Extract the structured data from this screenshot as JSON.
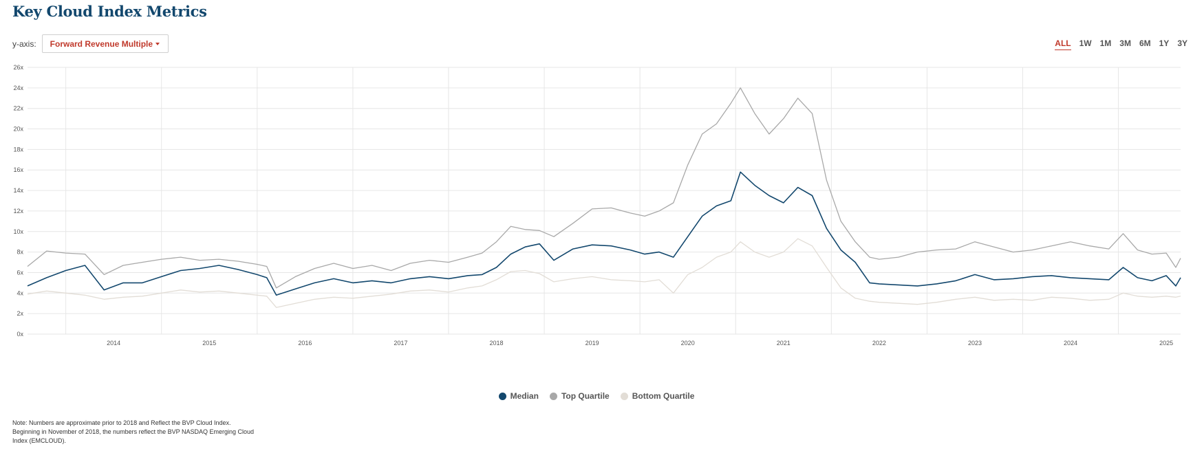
{
  "header": {
    "title": "Key Cloud Index Metrics"
  },
  "yaxis_selector": {
    "label": "y-axis:",
    "value": "Forward Revenue Multiple"
  },
  "ranges": [
    {
      "label": "ALL",
      "active": true
    },
    {
      "label": "1W",
      "active": false
    },
    {
      "label": "1M",
      "active": false
    },
    {
      "label": "3M",
      "active": false
    },
    {
      "label": "6M",
      "active": false
    },
    {
      "label": "1Y",
      "active": false
    },
    {
      "label": "3Y",
      "active": false
    }
  ],
  "note": {
    "line1": "Note: Numbers are approximate prior to 2018 and Reflect the BVP Cloud Index.",
    "line2": "Beginning in November of 2018, the numbers reflect the BVP NASDAQ Emerging Cloud",
    "line3": "Index (EMCLOUD)."
  },
  "colors": {
    "median": "#12476d",
    "top": "#a8a8a8",
    "bottom": "#e2ddd6",
    "accent": "#c0392b"
  },
  "chart_data": {
    "type": "line",
    "x_label_ticks": [
      "2014",
      "2015",
      "2016",
      "2017",
      "2018",
      "2019",
      "2020",
      "2021",
      "2022",
      "2023",
      "2024",
      "2025"
    ],
    "y_tick_labels": [
      "0x",
      "2x",
      "4x",
      "6x",
      "8x",
      "10x",
      "12x",
      "14x",
      "16x",
      "18x",
      "20x",
      "22x",
      "24x",
      "26x"
    ],
    "xlim": [
      2013.1,
      2025.15
    ],
    "ylim": [
      0,
      26
    ],
    "grid": true,
    "legend": "bottom-center",
    "x": [
      2013.1,
      2013.3,
      2013.5,
      2013.7,
      2013.9,
      2014.1,
      2014.3,
      2014.5,
      2014.7,
      2014.9,
      2015.1,
      2015.3,
      2015.5,
      2015.6,
      2015.7,
      2015.9,
      2016.1,
      2016.3,
      2016.5,
      2016.7,
      2016.9,
      2017.1,
      2017.3,
      2017.5,
      2017.7,
      2017.85,
      2018.0,
      2018.15,
      2018.3,
      2018.45,
      2018.6,
      2018.8,
      2019.0,
      2019.2,
      2019.4,
      2019.55,
      2019.7,
      2019.85,
      2020.0,
      2020.15,
      2020.3,
      2020.45,
      2020.55,
      2020.7,
      2020.85,
      2021.0,
      2021.15,
      2021.3,
      2021.45,
      2021.6,
      2021.75,
      2021.9,
      2022.0,
      2022.2,
      2022.4,
      2022.6,
      2022.8,
      2023.0,
      2023.2,
      2023.4,
      2023.6,
      2023.8,
      2024.0,
      2024.2,
      2024.4,
      2024.55,
      2024.7,
      2024.85,
      2025.0,
      2025.1,
      2025.15
    ],
    "series": [
      {
        "name": "Median",
        "values": [
          4.7,
          5.5,
          6.2,
          6.7,
          4.3,
          5.0,
          5.0,
          5.6,
          6.2,
          6.4,
          6.7,
          6.3,
          5.8,
          5.5,
          3.8,
          4.4,
          5.0,
          5.4,
          5.0,
          5.2,
          5.0,
          5.4,
          5.6,
          5.4,
          5.7,
          5.8,
          6.5,
          7.8,
          8.5,
          8.8,
          7.2,
          8.3,
          8.7,
          8.6,
          8.2,
          7.8,
          8.0,
          7.5,
          9.5,
          11.5,
          12.5,
          13.0,
          15.8,
          14.5,
          13.5,
          12.8,
          14.3,
          13.5,
          10.3,
          8.2,
          7.0,
          5.0,
          4.9,
          4.8,
          4.7,
          4.9,
          5.2,
          5.8,
          5.3,
          5.4,
          5.6,
          5.7,
          5.5,
          5.4,
          5.3,
          6.5,
          5.5,
          5.2,
          5.7,
          4.7,
          5.5
        ]
      },
      {
        "name": "Top Quartile",
        "values": [
          6.6,
          8.1,
          7.9,
          7.8,
          5.8,
          6.7,
          7.0,
          7.3,
          7.5,
          7.2,
          7.3,
          7.1,
          6.8,
          6.6,
          4.5,
          5.6,
          6.4,
          6.9,
          6.4,
          6.7,
          6.2,
          6.9,
          7.2,
          7.0,
          7.5,
          7.9,
          9.0,
          10.5,
          10.2,
          10.1,
          9.5,
          10.8,
          12.2,
          12.3,
          11.8,
          11.5,
          12.0,
          12.8,
          16.5,
          19.5,
          20.5,
          22.5,
          24.0,
          21.5,
          19.5,
          21.0,
          23.0,
          21.5,
          15.0,
          11.0,
          9.0,
          7.5,
          7.3,
          7.5,
          8.0,
          8.2,
          8.3,
          9.0,
          8.5,
          8.0,
          8.2,
          8.6,
          9.0,
          8.6,
          8.3,
          9.8,
          8.2,
          7.8,
          7.9,
          6.5,
          7.4
        ]
      },
      {
        "name": "Bottom Quartile",
        "values": [
          3.9,
          4.2,
          4.0,
          3.8,
          3.4,
          3.6,
          3.7,
          4.0,
          4.3,
          4.1,
          4.2,
          4.0,
          3.8,
          3.7,
          2.6,
          3.0,
          3.4,
          3.6,
          3.5,
          3.7,
          3.9,
          4.2,
          4.3,
          4.1,
          4.5,
          4.7,
          5.3,
          6.1,
          6.2,
          5.9,
          5.1,
          5.4,
          5.6,
          5.3,
          5.2,
          5.1,
          5.3,
          4.0,
          5.8,
          6.5,
          7.5,
          8.0,
          9.0,
          8.0,
          7.5,
          8.0,
          9.3,
          8.6,
          6.5,
          4.5,
          3.5,
          3.2,
          3.1,
          3.0,
          2.9,
          3.1,
          3.4,
          3.6,
          3.3,
          3.4,
          3.3,
          3.6,
          3.5,
          3.3,
          3.4,
          4.0,
          3.7,
          3.6,
          3.7,
          3.6,
          3.7
        ]
      }
    ]
  }
}
